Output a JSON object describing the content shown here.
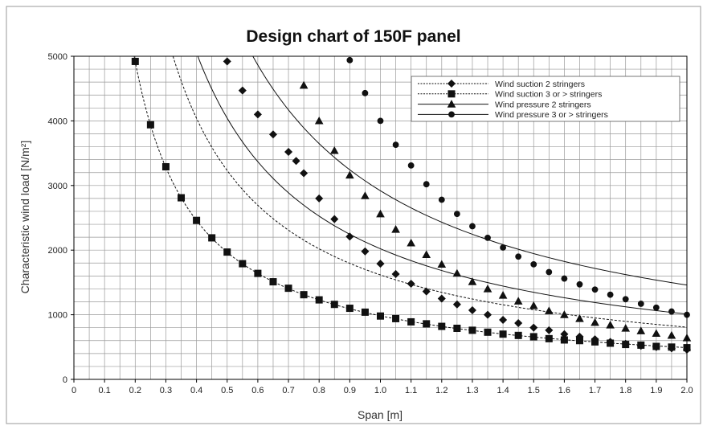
{
  "chart_data": {
    "type": "line",
    "title": "Design chart of 150F panel",
    "xlabel": "Span [m]",
    "ylabel": "Characteristic wind load [N/m²]",
    "xlim": [
      0,
      2.0
    ],
    "ylim": [
      0,
      5000
    ],
    "x_ticks": [
      "0",
      "0.1",
      "0.2",
      "0.3",
      "0.4",
      "0.5",
      "0.6",
      "0.7",
      "0.8",
      "0.9",
      "1.0",
      "1.1",
      "1.2",
      "1.3",
      "1.4",
      "1.5",
      "1.6",
      "1.7",
      "1.8",
      "1.9",
      "2.0"
    ],
    "y_ticks": [
      "0",
      "1000",
      "2000",
      "3000",
      "4000",
      "5000"
    ],
    "grid": true,
    "legend_position": "top-right",
    "series": [
      {
        "name": "Wind suction 2 stringers",
        "marker": "diamond",
        "line": "dotted",
        "x": [
          0.5,
          0.55,
          0.6,
          0.65,
          0.7,
          0.725,
          0.75,
          0.8,
          0.85,
          0.9,
          0.95,
          1.0,
          1.05,
          1.1,
          1.15,
          1.2,
          1.25,
          1.3,
          1.35,
          1.4,
          1.45,
          1.5,
          1.55,
          1.6,
          1.65,
          1.7,
          1.75,
          1.8,
          1.85,
          1.9,
          1.95,
          2.0
        ],
        "y": [
          4920,
          4470,
          4100,
          3790,
          3520,
          3380,
          3190,
          2800,
          2480,
          2210,
          1980,
          1790,
          1630,
          1480,
          1360,
          1250,
          1160,
          1070,
          1000,
          920,
          870,
          800,
          760,
          700,
          660,
          620,
          580,
          550,
          520,
          500,
          480,
          460
        ]
      },
      {
        "name": "Wind suction 3 or > stringers",
        "marker": "square",
        "line": "dotted",
        "x": [
          0.2,
          0.25,
          0.3,
          0.35,
          0.4,
          0.45,
          0.5,
          0.55,
          0.6,
          0.65,
          0.7,
          0.75,
          0.8,
          0.85,
          0.9,
          0.95,
          1.0,
          1.05,
          1.1,
          1.15,
          1.2,
          1.25,
          1.3,
          1.35,
          1.4,
          1.45,
          1.5,
          1.55,
          1.6,
          1.65,
          1.7,
          1.75,
          1.8,
          1.85,
          1.9,
          1.95,
          2.0
        ],
        "y": [
          4920,
          3940,
          3290,
          2810,
          2460,
          2190,
          1970,
          1790,
          1640,
          1510,
          1410,
          1310,
          1230,
          1160,
          1100,
          1040,
          980,
          940,
          890,
          860,
          820,
          790,
          760,
          730,
          700,
          680,
          660,
          630,
          610,
          600,
          580,
          560,
          540,
          530,
          510,
          500,
          490
        ]
      },
      {
        "name": "Wind pressure 2 stringers",
        "marker": "triangle",
        "line": "solid",
        "x": [
          0.75,
          0.8,
          0.85,
          0.9,
          0.95,
          1.0,
          1.05,
          1.1,
          1.15,
          1.2,
          1.25,
          1.3,
          1.35,
          1.4,
          1.45,
          1.5,
          1.55,
          1.6,
          1.65,
          1.7,
          1.75,
          1.8,
          1.85,
          1.9,
          1.95,
          2.0
        ],
        "y": [
          4550,
          4000,
          3540,
          3160,
          2840,
          2560,
          2320,
          2110,
          1930,
          1780,
          1640,
          1510,
          1400,
          1300,
          1210,
          1140,
          1060,
          1000,
          940,
          880,
          840,
          790,
          750,
          710,
          680,
          640
        ]
      },
      {
        "name": "Wind pressure 3 or > stringers",
        "marker": "circle",
        "line": "solid",
        "x": [
          0.9,
          0.95,
          1.0,
          1.05,
          1.1,
          1.15,
          1.2,
          1.25,
          1.3,
          1.35,
          1.4,
          1.45,
          1.5,
          1.55,
          1.6,
          1.65,
          1.7,
          1.75,
          1.8,
          1.85,
          1.9,
          1.95,
          2.0
        ],
        "y": [
          4940,
          4430,
          4000,
          3630,
          3310,
          3020,
          2780,
          2560,
          2370,
          2190,
          2040,
          1900,
          1780,
          1660,
          1560,
          1470,
          1390,
          1310,
          1240,
          1170,
          1110,
          1050,
          1000
        ]
      }
    ]
  }
}
